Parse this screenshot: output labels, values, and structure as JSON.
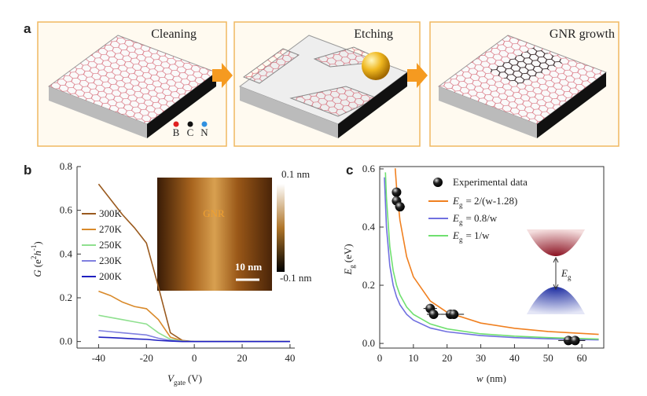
{
  "schematic": {
    "panel_label": "a",
    "steps": [
      "Cleaning",
      "Etching",
      "GNR growth"
    ],
    "atoms": [
      "B",
      "C",
      "N"
    ]
  },
  "chart_data": [
    {
      "type": "line",
      "panel_label": "b",
      "xlabel": {
        "symbol": "V",
        "sub": "gate",
        "unit": "(V)"
      },
      "ylabel": {
        "symbol": "G",
        "open": "(e",
        "sup1": "2",
        "mid": "h",
        "sup2": "-1",
        "close": ")"
      },
      "x": [
        -40,
        -35,
        -30,
        -25,
        -20,
        -15,
        -10,
        -5,
        0,
        10,
        20,
        30,
        40
      ],
      "series": [
        {
          "name": "300K",
          "color": "#9a5a1e",
          "values": [
            0.72,
            0.65,
            0.58,
            0.52,
            0.45,
            0.25,
            0.04,
            0.005,
            0,
            0,
            0,
            0,
            0
          ]
        },
        {
          "name": "270K",
          "color": "#d98a2b",
          "values": [
            0.23,
            0.21,
            0.18,
            0.16,
            0.15,
            0.1,
            0.02,
            0.003,
            0,
            0,
            0,
            0,
            0
          ]
        },
        {
          "name": "250K",
          "color": "#8fe08f",
          "values": [
            0.12,
            0.11,
            0.1,
            0.09,
            0.08,
            0.04,
            0.01,
            0.002,
            0,
            0,
            0,
            0,
            0
          ]
        },
        {
          "name": "230K",
          "color": "#8080e0",
          "values": [
            0.05,
            0.045,
            0.04,
            0.035,
            0.03,
            0.015,
            0.005,
            0.001,
            0,
            0,
            0,
            0,
            0
          ]
        },
        {
          "name": "200K",
          "color": "#2020c0",
          "values": [
            0.02,
            0.018,
            0.015,
            0.012,
            0.01,
            0.005,
            0.002,
            0,
            0,
            0,
            0,
            0,
            0
          ]
        }
      ],
      "xlim": [
        -49,
        42
      ],
      "xticks": [
        -40,
        -20,
        0,
        20,
        40
      ],
      "ylim": [
        -0.03,
        0.8
      ],
      "yticks": [
        {
          "value": 0,
          "label": "0.0"
        },
        {
          "value": 0.2,
          "label": "0.2"
        },
        {
          "value": 0.4,
          "label": "0.4"
        },
        {
          "value": 0.6,
          "label": "0.6"
        },
        {
          "value": 0.8,
          "label": "0.8"
        }
      ],
      "inset": {
        "label": "GNR",
        "scale": "10 nm",
        "cmax": "0.1 nm",
        "cmin": "-0.1 nm"
      }
    },
    {
      "type": "scatter",
      "panel_label": "c",
      "xlabel": {
        "symbol": "w",
        "unit": "(nm)"
      },
      "ylabel": {
        "symbol": "E",
        "sub": "g",
        "unit": "(eV)"
      },
      "points": {
        "name": "Experimental data",
        "color": "#111111",
        "x": [
          5,
          5,
          6,
          15,
          16,
          21,
          22,
          56,
          58
        ],
        "values": [
          0.52,
          0.49,
          0.47,
          0.12,
          0.1,
          0.1,
          0.1,
          0.01,
          0.01
        ],
        "xerr": [
          1,
          1,
          1.5,
          2,
          2,
          3,
          3,
          3,
          3
        ]
      },
      "series": [
        {
          "name": {
            "symbol": "E",
            "sub": "g",
            "rest": "= 2/(w-1.28)"
          },
          "color": "#f08020",
          "x": [
            4.6,
            5,
            6,
            8,
            10,
            15,
            20,
            30,
            40,
            50,
            65
          ],
          "values": [
            0.602,
            0.538,
            0.424,
            0.298,
            0.229,
            0.146,
            0.107,
            0.07,
            0.052,
            0.041,
            0.031
          ]
        },
        {
          "name": {
            "symbol": "E",
            "sub": "g",
            "rest": "= 0.8/w"
          },
          "color": "#7070e0",
          "x": [
            1.4,
            2,
            3,
            4,
            5,
            6,
            8,
            10,
            15,
            20,
            30,
            40,
            50,
            65
          ],
          "values": [
            0.571,
            0.4,
            0.267,
            0.2,
            0.16,
            0.133,
            0.1,
            0.08,
            0.053,
            0.04,
            0.027,
            0.02,
            0.016,
            0.012
          ]
        },
        {
          "name": {
            "symbol": "E",
            "sub": "g",
            "rest": "= 1/w"
          },
          "color": "#70e070",
          "x": [
            1.7,
            2,
            3,
            4,
            5,
            6,
            8,
            10,
            15,
            20,
            30,
            40,
            50,
            65
          ],
          "values": [
            0.588,
            0.5,
            0.333,
            0.25,
            0.2,
            0.167,
            0.125,
            0.1,
            0.067,
            0.05,
            0.033,
            0.025,
            0.02,
            0.015
          ]
        }
      ],
      "xlim": [
        0,
        66.5
      ],
      "xticks": [
        0,
        10,
        20,
        30,
        40,
        50,
        60
      ],
      "ylim": [
        -0.016,
        0.608
      ],
      "yticks": [
        {
          "value": 0,
          "label": "0.0"
        },
        {
          "value": 0.2,
          "label": "0.2"
        },
        {
          "value": 0.4,
          "label": "0.4"
        },
        {
          "value": 0.6,
          "label": "0.6"
        }
      ],
      "inset_label": {
        "symbol": "E",
        "sub": "g"
      }
    }
  ]
}
